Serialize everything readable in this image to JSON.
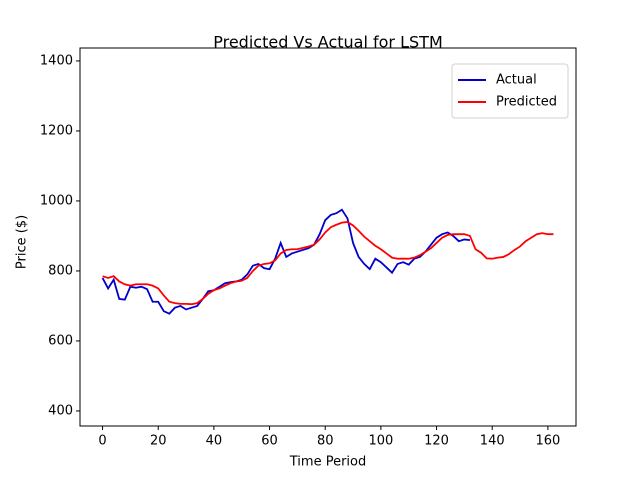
{
  "chart_data": {
    "type": "line",
    "title": "Predicted Vs Actual for LSTM",
    "x_label": "Time Period",
    "y_label": "Price ($)",
    "x": [
      0,
      2,
      4,
      6,
      8,
      10,
      12,
      14,
      16,
      18,
      20,
      22,
      24,
      26,
      28,
      30,
      32,
      34,
      36,
      38,
      40,
      42,
      44,
      46,
      48,
      50,
      52,
      54,
      56,
      58,
      60,
      62,
      64,
      66,
      68,
      70,
      72,
      74,
      76,
      78,
      80,
      82,
      84,
      86,
      88,
      90,
      92,
      94,
      96,
      98,
      100,
      102,
      104,
      106,
      108,
      110,
      112,
      114,
      116,
      118,
      120,
      122,
      124,
      126,
      128,
      130,
      132,
      134,
      136,
      138,
      140,
      142,
      144,
      146,
      148,
      150,
      152,
      154,
      156,
      158,
      160,
      162
    ],
    "series": [
      {
        "name": "Actual",
        "color": "#0000cd",
        "values": [
          780,
          750,
          775,
          720,
          718,
          755,
          752,
          755,
          748,
          712,
          712,
          685,
          678,
          695,
          700,
          690,
          695,
          700,
          720,
          742,
          745,
          755,
          765,
          768,
          770,
          775,
          790,
          815,
          820,
          808,
          805,
          835,
          880,
          840,
          850,
          855,
          860,
          865,
          875,
          905,
          945,
          960,
          965,
          975,
          950,
          880,
          840,
          820,
          805,
          835,
          825,
          810,
          795,
          820,
          825,
          818,
          835,
          840,
          855,
          875,
          895,
          905,
          910,
          900,
          885,
          890,
          888,
          null,
          null,
          null,
          null,
          null,
          null,
          null,
          null,
          null,
          null,
          null,
          null,
          null,
          null,
          null
        ]
      },
      {
        "name": "Predicted",
        "color": "#ff0000",
        "values": [
          785,
          780,
          785,
          770,
          762,
          758,
          762,
          762,
          762,
          758,
          750,
          730,
          712,
          708,
          706,
          706,
          705,
          708,
          720,
          735,
          745,
          750,
          758,
          765,
          770,
          772,
          780,
          800,
          815,
          820,
          822,
          830,
          850,
          860,
          862,
          862,
          866,
          870,
          875,
          890,
          910,
          925,
          932,
          938,
          940,
          930,
          915,
          898,
          885,
          872,
          862,
          850,
          838,
          835,
          835,
          835,
          838,
          845,
          855,
          865,
          880,
          895,
          903,
          905,
          905,
          905,
          900,
          862,
          852,
          836,
          835,
          838,
          840,
          848,
          860,
          870,
          885,
          895,
          905,
          908,
          905,
          905
        ]
      }
    ],
    "xlim": [
      -8.1,
      170.1
    ],
    "ylim": [
      357,
      1437
    ],
    "xticks": [
      0,
      20,
      40,
      60,
      80,
      100,
      120,
      140,
      160
    ],
    "yticks": [
      400,
      600,
      800,
      1000,
      1200,
      1400
    ],
    "legend": "upper right"
  }
}
